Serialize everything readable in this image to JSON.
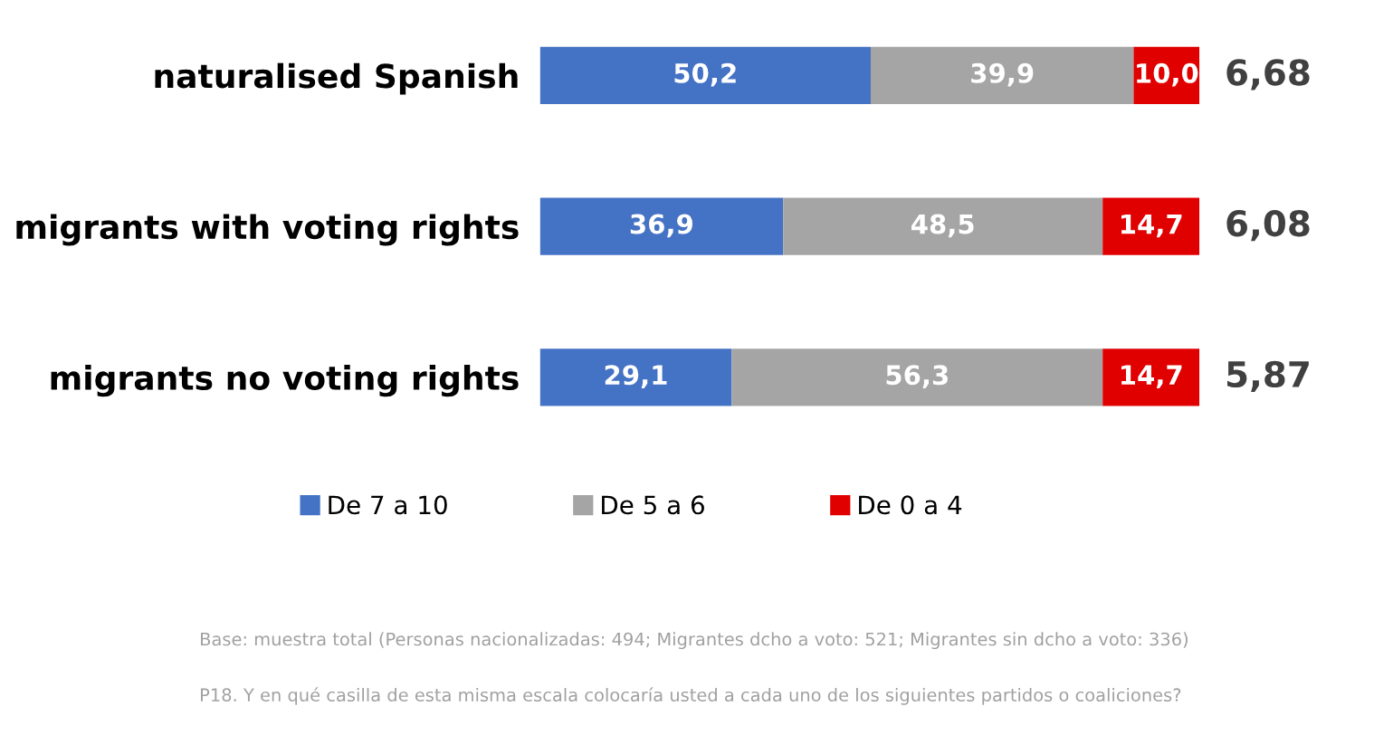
{
  "chart_data": {
    "type": "bar",
    "orientation": "horizontal",
    "stacked": true,
    "categories": [
      "naturalised Spanish",
      "migrants with voting rights",
      "migrants no voting rights"
    ],
    "series": [
      {
        "name": "De 7 a 10",
        "color": "#4472c4",
        "values": [
          50.2,
          36.9,
          29.1
        ],
        "value_labels": [
          "50,2",
          "36,9",
          "29,1"
        ]
      },
      {
        "name": "De 5 a 6",
        "color": "#a5a5a5",
        "values": [
          39.9,
          48.5,
          56.3
        ],
        "value_labels": [
          "39,9",
          "48,5",
          "56,3"
        ]
      },
      {
        "name": "De 0 a 4",
        "color": "#e00000",
        "values": [
          10.0,
          14.7,
          14.7
        ],
        "value_labels": [
          "10,0",
          "14,7",
          "14,7"
        ]
      }
    ],
    "legend": "bottom",
    "grid": false,
    "annotations": [
      "6,68",
      "6,08",
      "5,87",
      "Base: muestra total (Personas nacionalizadas: 494; Migrantes dcho a voto: 521; Migrantes sin dcho a voto: 336)",
      "P18. Y en qué casilla de esta misma escala colocaría usted a cada uno de los siguientes partidos o coaliciones?"
    ]
  }
}
